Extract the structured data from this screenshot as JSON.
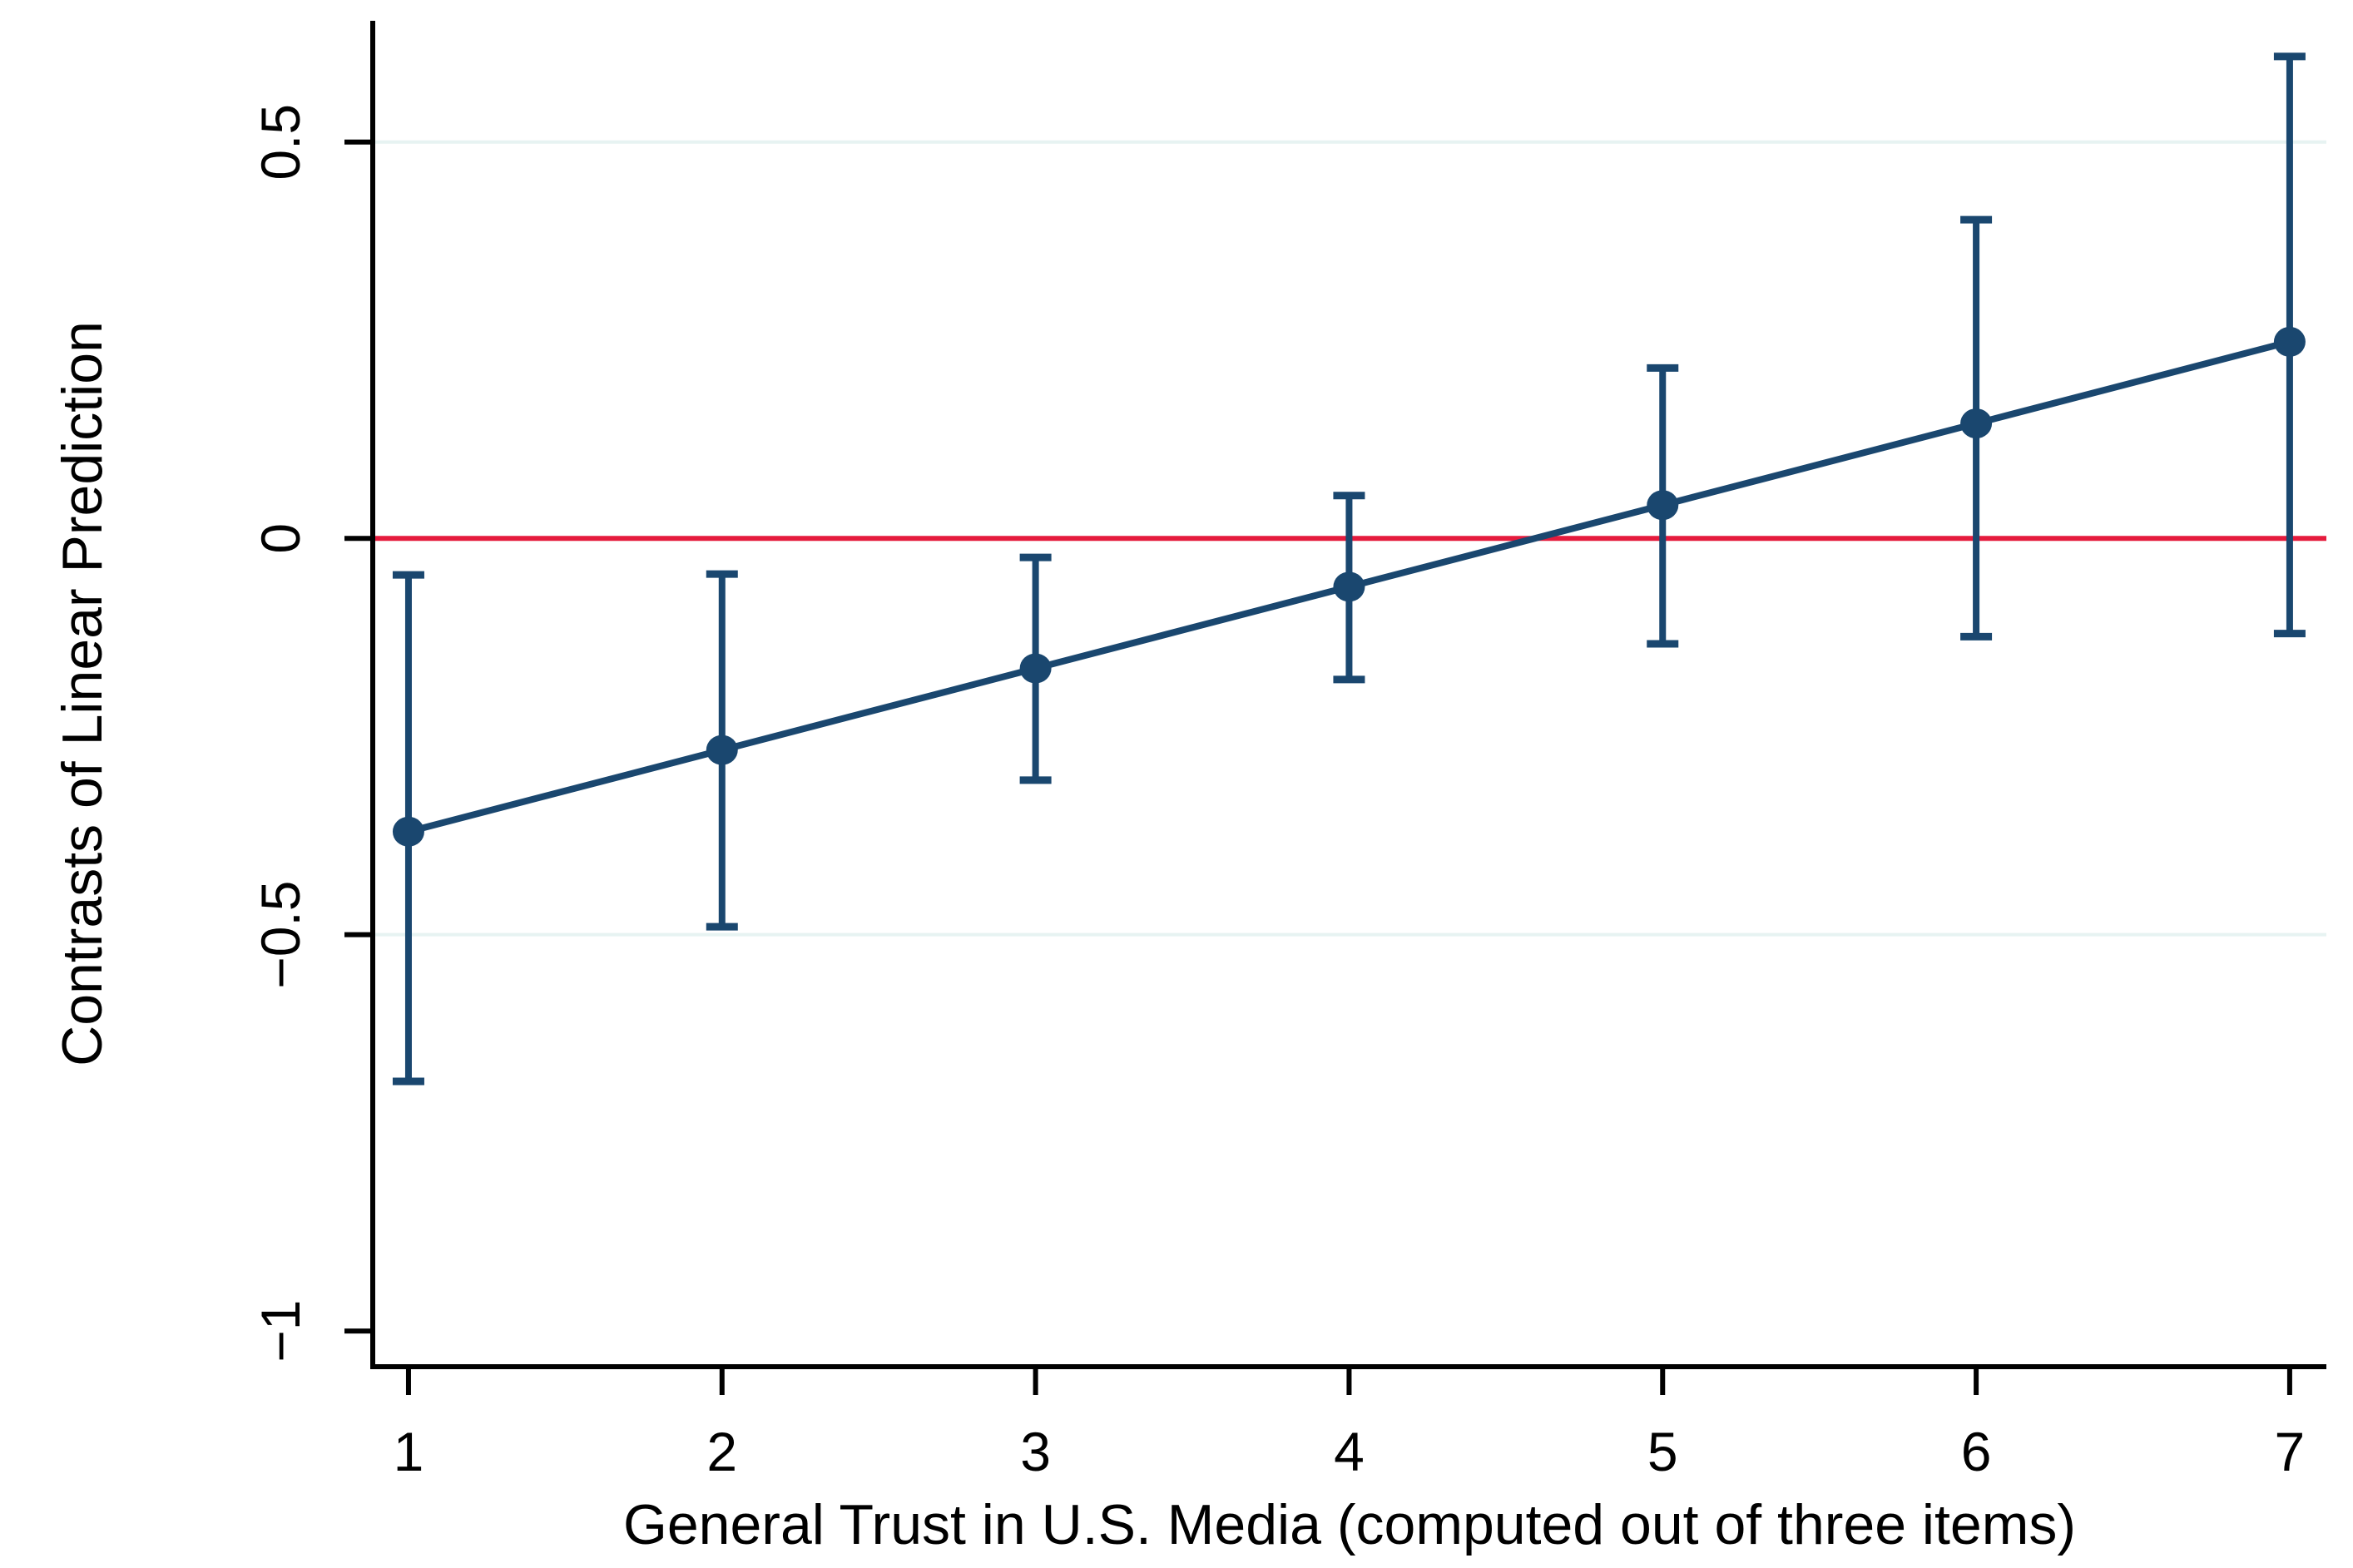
{
  "chart_data": {
    "type": "line",
    "subtype": "point-estimates-with-confidence-intervals",
    "title": "",
    "xlabel": "General Trust in U.S. Media (computed out of three items)",
    "ylabel": "Contrasts of Linear Prediction",
    "x": [
      1,
      2,
      3,
      4,
      5,
      6,
      7
    ],
    "series": [
      {
        "name": "Contrasts of Linear Prediction",
        "values": [
          -0.37,
          -0.267,
          -0.164,
          -0.061,
          0.042,
          0.145,
          0.248
        ],
        "ci_low": [
          -0.685,
          -0.49,
          -0.305,
          -0.178,
          -0.133,
          -0.124,
          -0.12
        ],
        "ci_high": [
          -0.046,
          -0.045,
          -0.024,
          0.054,
          0.215,
          0.402,
          0.608
        ]
      }
    ],
    "x_ticks": [
      1,
      2,
      3,
      4,
      5,
      6,
      7
    ],
    "x_tick_labels": [
      "1",
      "2",
      "3",
      "4",
      "5",
      "6",
      "7"
    ],
    "y_ticks": [
      0.5,
      0,
      -0.5,
      -1
    ],
    "y_tick_labels": [
      "0.5",
      "0",
      "−0.5",
      "−1"
    ],
    "grid_y": [
      0.5,
      -0.5
    ],
    "reference_line_y": 0,
    "x_range": [
      0.886,
      7.117
    ],
    "y_range": [
      -1.045,
      0.653
    ],
    "grid": "horizontal-only",
    "legend_position": "none",
    "colors": {
      "series": "#1a476f",
      "reference_line": "#e51b3d",
      "grid_line": "#e7f3f2",
      "axis": "#000000",
      "background": "#ffffff"
    }
  }
}
